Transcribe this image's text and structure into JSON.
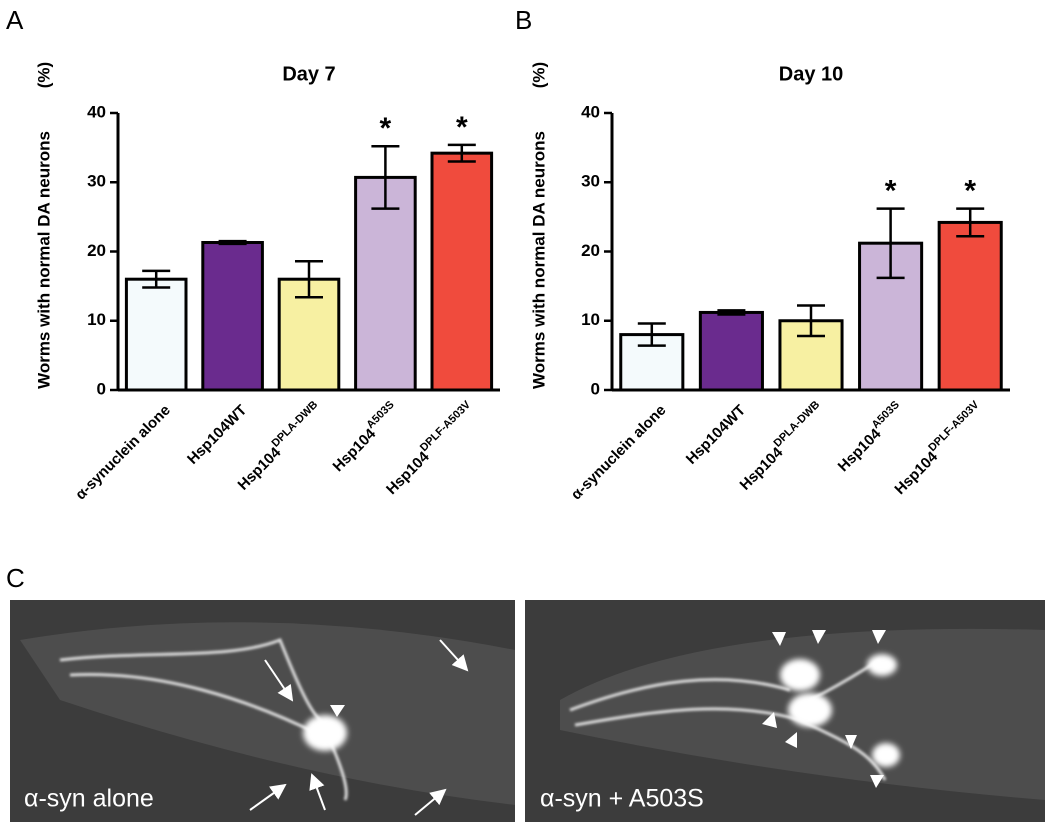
{
  "panel_labels": [
    "A",
    "B",
    "C"
  ],
  "chart_data": [
    {
      "type": "bar",
      "title": "Day 7",
      "ylabel": "Worms with normal DA neurons",
      "yunit": "(%)",
      "categories": [
        {
          "text": "α-synuclein alone"
        },
        {
          "text": "Hsp104WT"
        },
        {
          "text": "Hsp104",
          "sup": "DPLA-DWB"
        },
        {
          "text": "Hsp104",
          "sup": "A503S"
        },
        {
          "text": "Hsp104",
          "sup": "DPLF-A503V"
        }
      ],
      "values": [
        16,
        21.3,
        16,
        30.7,
        34.2
      ],
      "errors": [
        1.2,
        0.2,
        2.6,
        4.5,
        1.2
      ],
      "significance": [
        null,
        null,
        null,
        "*",
        "*"
      ],
      "colors": [
        "#f4fafc",
        "#6a2b8e",
        "#f7f0a2",
        "#cbb5d8",
        "#f04b3d"
      ],
      "ylim": [
        0,
        40
      ],
      "yticks": [
        0,
        10,
        20,
        30,
        40
      ]
    },
    {
      "type": "bar",
      "title": "Day 10",
      "ylabel": "Worms with normal DA neurons",
      "yunit": "(%)",
      "categories": [
        {
          "text": "α-synuclein alone"
        },
        {
          "text": "Hsp104WT"
        },
        {
          "text": "Hsp104",
          "sup": "DPLA-DWB"
        },
        {
          "text": "Hsp104",
          "sup": "A503S"
        },
        {
          "text": "Hsp104",
          "sup": "DPLF-A503V"
        }
      ],
      "values": [
        8,
        11.2,
        10,
        21.2,
        24.2
      ],
      "errors": [
        1.6,
        0.3,
        2.2,
        5,
        2
      ],
      "significance": [
        null,
        null,
        null,
        "*",
        "*"
      ],
      "colors": [
        "#f4fafc",
        "#6a2b8e",
        "#f7f0a2",
        "#cbb5d8",
        "#f04b3d"
      ],
      "ylim": [
        0,
        40
      ],
      "yticks": [
        0,
        10,
        20,
        30,
        40
      ]
    }
  ],
  "images": [
    {
      "caption": "α-syn alone"
    },
    {
      "caption": "α-syn + A503S"
    }
  ]
}
